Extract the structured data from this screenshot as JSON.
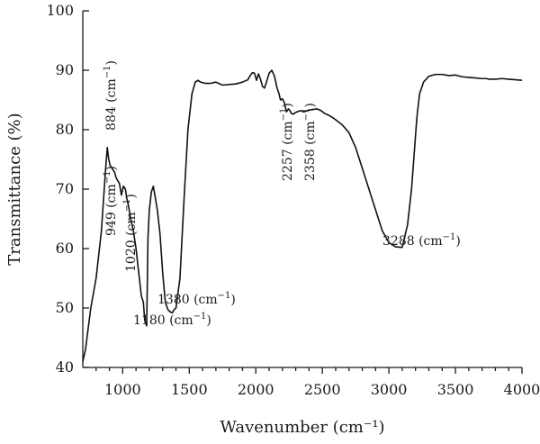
{
  "chart_data": {
    "type": "line",
    "title": "",
    "xlabel": "Wavenumber (cm⁻¹)",
    "ylabel": "Transmittance (%)",
    "xlim": [
      700,
      4000
    ],
    "ylim": [
      40,
      100
    ],
    "x_ticks": [
      1000,
      1500,
      2000,
      2500,
      3000,
      3500,
      4000
    ],
    "y_ticks": [
      40,
      50,
      60,
      70,
      80,
      90,
      100
    ],
    "grid": false,
    "series": [
      {
        "x": [
          700,
          720,
          760,
          800,
          840,
          870,
          884,
          895,
          905,
          920,
          940,
          949,
          960,
          975,
          990,
          1005,
          1020,
          1030,
          1045,
          1060,
          1080,
          1100,
          1120,
          1140,
          1155,
          1165,
          1172,
          1180,
          1190,
          1200,
          1215,
          1230,
          1245,
          1260,
          1280,
          1300,
          1320,
          1340,
          1360,
          1372,
          1380,
          1390,
          1400,
          1430,
          1460,
          1490,
          1520,
          1545,
          1565,
          1585,
          1620,
          1660,
          1700,
          1750,
          1800,
          1850,
          1900,
          1940,
          1960,
          1975,
          1990,
          2005,
          2020,
          2035,
          2050,
          2065,
          2080,
          2100,
          2120,
          2140,
          2160,
          2175,
          2185,
          2200,
          2215,
          2230,
          2245,
          2257,
          2265,
          2280,
          2300,
          2320,
          2340,
          2358,
          2375,
          2400,
          2430,
          2460,
          2490,
          2520,
          2550,
          2580,
          2610,
          2650,
          2700,
          2750,
          2800,
          2850,
          2900,
          2950,
          3000,
          3050,
          3100,
          3140,
          3170,
          3190,
          3210,
          3230,
          3260,
          3300,
          3350,
          3400,
          3450,
          3500,
          3550,
          3600,
          3650,
          3700,
          3730,
          3750,
          3780,
          3800,
          3850,
          3900,
          3950,
          4000
        ],
        "y": [
          41,
          43,
          50,
          55,
          63,
          73,
          77,
          75,
          74,
          73.5,
          72.8,
          72,
          71.5,
          71,
          69,
          70.5,
          70,
          68.5,
          67,
          65,
          63,
          60,
          56,
          52,
          51,
          48,
          47.5,
          47,
          62,
          66.5,
          69.5,
          70.5,
          68.5,
          66.5,
          62.5,
          56,
          51,
          49.7,
          49.3,
          49.2,
          49.5,
          49.8,
          50,
          55,
          68,
          80,
          86,
          88,
          88.3,
          88,
          87.8,
          87.8,
          88,
          87.5,
          87.6,
          87.7,
          88,
          88.4,
          89.2,
          89.6,
          89.5,
          88.3,
          89.4,
          88.5,
          87.3,
          87,
          88,
          89.5,
          90,
          89,
          87,
          86,
          85,
          85.2,
          84.5,
          83,
          83.5,
          83.2,
          82.8,
          82.6,
          82.9,
          83.1,
          83.2,
          83,
          83.1,
          83.3,
          83.4,
          83.5,
          83.2,
          82.7,
          82.4,
          82,
          81.5,
          80.8,
          79.5,
          77,
          73.5,
          70,
          66.5,
          63,
          61,
          60.3,
          60.2,
          64,
          70,
          76,
          82,
          86,
          88,
          89,
          89.3,
          89.3,
          89.1,
          89.2,
          88.9,
          88.8,
          88.7,
          88.6,
          88.6,
          88.5,
          88.5,
          88.5,
          88.6,
          88.5,
          88.4,
          88.3
        ]
      }
    ],
    "annotations": [
      {
        "text": "884 (cm",
        "sup": "−1",
        "close": ")"
      },
      {
        "text": "949 (cm",
        "sup": "−1",
        "close": ")"
      },
      {
        "text": "1020 (cm",
        "sup": "−1",
        "close": ")"
      },
      {
        "text": "1180 (cm",
        "sup": "−1",
        "close": ")"
      },
      {
        "text": "1380 (cm",
        "sup": "−1",
        "close": ")"
      },
      {
        "text": "2257 (cm",
        "sup": "−1",
        "close": ")"
      },
      {
        "text": "2358 (cm",
        "sup": "−1",
        "close": ")"
      },
      {
        "text": "3288 (cm",
        "sup": "−1",
        "close": ")"
      }
    ]
  }
}
